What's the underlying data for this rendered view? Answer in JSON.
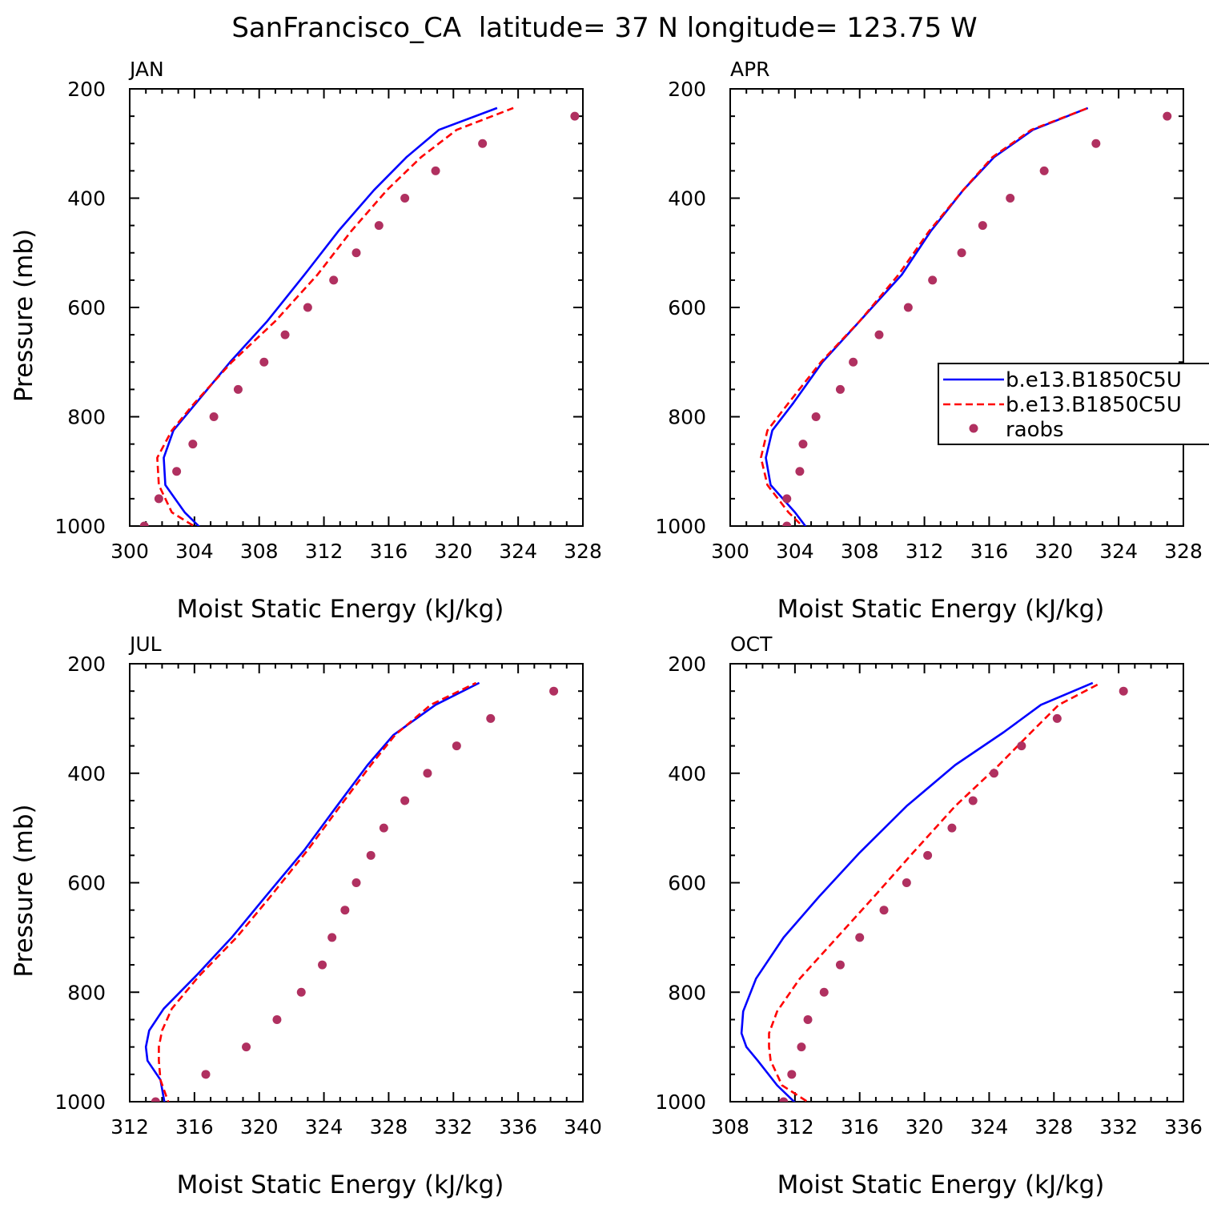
{
  "figure_title": "SanFrancisco_CA  latitude= 37 N longitude= 123.75 W",
  "colors": {
    "series_1": "#0000ff",
    "series_2": "#ff0000",
    "raobs": "#b03060",
    "axes": "#000000"
  },
  "legend": {
    "panel": "APR",
    "entries": [
      "b.e13.B1850C5U",
      "b.e13.B1850C5U",
      "raobs"
    ]
  },
  "chart_data": [
    {
      "type": "line",
      "panel_label": "JAN",
      "xlabel": "Moist Static Energy (kJ/kg)",
      "ylabel": "Pressure (mb)",
      "xlim": [
        300,
        328
      ],
      "ylim": [
        1000,
        200
      ],
      "y_axis_inverted": true,
      "xticks": [
        "300",
        "304",
        "308",
        "312",
        "316",
        "320",
        "324",
        "328"
      ],
      "yticks": [
        "200",
        "400",
        "600",
        "800",
        "1000"
      ],
      "series": [
        {
          "name": "b.e13.B1850C5U",
          "style": "solid",
          "x": [
            304.6,
            303.4,
            302.2,
            302.1,
            302.7,
            304.1,
            306.2,
            308.5,
            310.8,
            312.9,
            315.1,
            317.1,
            319.1,
            322.7
          ],
          "y": [
            1010,
            975,
            925,
            875,
            825,
            775,
            700,
            625,
            540,
            460,
            385,
            325,
            275,
            235
          ]
        },
        {
          "name": "b.e13.B1850C5U",
          "style": "dashed",
          "x": [
            304.5,
            302.6,
            301.8,
            301.7,
            302.6,
            304.0,
            306.3,
            309.0,
            311.6,
            313.7,
            315.9,
            318.0,
            320.2,
            323.7
          ],
          "y": [
            1010,
            975,
            925,
            875,
            825,
            775,
            700,
            625,
            540,
            460,
            385,
            325,
            275,
            235
          ]
        },
        {
          "name": "raobs",
          "style": "markers",
          "x": [
            300.9,
            301.8,
            302.9,
            303.9,
            305.2,
            306.7,
            308.3,
            309.6,
            311.0,
            312.6,
            314.0,
            315.4,
            317.0,
            318.9,
            321.8,
            327.5
          ],
          "y": [
            1000,
            950,
            900,
            850,
            800,
            750,
            700,
            650,
            600,
            550,
            500,
            450,
            400,
            350,
            300,
            250
          ]
        }
      ]
    },
    {
      "type": "line",
      "panel_label": "APR",
      "xlabel": "Moist Static Energy (kJ/kg)",
      "ylabel": "",
      "xlim": [
        300,
        328
      ],
      "ylim": [
        1000,
        200
      ],
      "y_axis_inverted": true,
      "xticks": [
        "300",
        "304",
        "308",
        "312",
        "316",
        "320",
        "324",
        "328"
      ],
      "yticks": [
        "200",
        "400",
        "600",
        "800",
        "1000"
      ],
      "series": [
        {
          "name": "b.e13.B1850C5U",
          "style": "solid",
          "x": [
            304.9,
            304.0,
            302.5,
            302.2,
            302.6,
            303.9,
            305.7,
            308.0,
            310.6,
            312.4,
            314.4,
            316.3,
            318.7,
            322.1
          ],
          "y": [
            1010,
            975,
            925,
            875,
            825,
            775,
            700,
            625,
            540,
            460,
            385,
            325,
            275,
            235
          ]
        },
        {
          "name": "b.e13.B1850C5U",
          "style": "dashed",
          "x": [
            304.8,
            303.6,
            302.3,
            301.9,
            302.3,
            303.6,
            305.6,
            308.0,
            310.4,
            312.3,
            314.4,
            316.2,
            318.6,
            322.1
          ],
          "y": [
            1010,
            975,
            925,
            875,
            825,
            775,
            700,
            625,
            540,
            460,
            385,
            325,
            275,
            235
          ]
        },
        {
          "name": "raobs",
          "style": "markers",
          "x": [
            303.5,
            303.5,
            304.3,
            304.5,
            305.3,
            306.8,
            307.6,
            309.2,
            311.0,
            312.5,
            314.3,
            315.6,
            317.3,
            319.4,
            322.6,
            327.0
          ],
          "y": [
            1000,
            950,
            900,
            850,
            800,
            750,
            700,
            650,
            600,
            550,
            500,
            450,
            400,
            350,
            300,
            250
          ]
        }
      ]
    },
    {
      "type": "line",
      "panel_label": "JUL",
      "xlabel": "Moist Static Energy (kJ/kg)",
      "ylabel": "Pressure (mb)",
      "xlim": [
        312,
        340
      ],
      "ylim": [
        1000,
        200
      ],
      "y_axis_inverted": true,
      "xticks": [
        "312",
        "316",
        "320",
        "324",
        "328",
        "332",
        "336",
        "340"
      ],
      "yticks": [
        "200",
        "400",
        "600",
        "800",
        "1000"
      ],
      "series": [
        {
          "name": "b.e13.B1850C5U",
          "style": "solid",
          "x": [
            314.2,
            313.9,
            313.1,
            313.0,
            313.2,
            314.1,
            316.1,
            318.3,
            320.4,
            322.8,
            324.8,
            326.7,
            328.3,
            330.9,
            333.6
          ],
          "y": [
            1010,
            960,
            925,
            900,
            870,
            830,
            770,
            700,
            625,
            540,
            460,
            385,
            330,
            275,
            235
          ]
        },
        {
          "name": "b.e13.B1850C5U",
          "style": "dashed",
          "x": [
            314.5,
            313.9,
            313.8,
            313.8,
            314.0,
            314.6,
            316.3,
            318.6,
            320.7,
            323.0,
            325.0,
            326.9,
            328.4,
            330.6,
            333.4
          ],
          "y": [
            1010,
            960,
            925,
            900,
            870,
            830,
            770,
            700,
            625,
            540,
            460,
            385,
            330,
            275,
            235
          ]
        },
        {
          "name": "raobs",
          "style": "markers",
          "x": [
            313.6,
            316.7,
            319.2,
            321.1,
            322.6,
            323.9,
            324.5,
            325.3,
            326.0,
            326.9,
            327.7,
            329.0,
            330.4,
            332.2,
            334.3,
            338.2
          ],
          "y": [
            1000,
            950,
            900,
            850,
            800,
            750,
            700,
            650,
            600,
            550,
            500,
            450,
            400,
            350,
            300,
            250
          ]
        }
      ]
    },
    {
      "type": "line",
      "panel_label": "OCT",
      "xlabel": "Moist Static Energy (kJ/kg)",
      "ylabel": "",
      "xlim": [
        308,
        336
      ],
      "ylim": [
        1000,
        200
      ],
      "y_axis_inverted": true,
      "xticks": [
        "308",
        "312",
        "316",
        "320",
        "324",
        "328",
        "332",
        "336"
      ],
      "yticks": [
        "200",
        "400",
        "600",
        "800",
        "1000"
      ],
      "series": [
        {
          "name": "b.e13.B1850C5U",
          "style": "solid",
          "x": [
            312.3,
            310.9,
            309.7,
            309.0,
            308.7,
            308.8,
            309.6,
            311.3,
            313.5,
            316.0,
            318.9,
            321.9,
            324.9,
            327.2,
            330.4
          ],
          "y": [
            1010,
            970,
            925,
            900,
            875,
            835,
            775,
            700,
            625,
            545,
            460,
            385,
            325,
            275,
            235
          ]
        },
        {
          "name": "b.e13.B1850C5U",
          "style": "dashed",
          "x": [
            313.3,
            311.2,
            310.5,
            310.4,
            310.4,
            310.9,
            312.3,
            314.6,
            316.9,
            319.3,
            321.9,
            324.6,
            326.6,
            328.3,
            330.9
          ],
          "y": [
            1010,
            970,
            925,
            900,
            875,
            835,
            775,
            700,
            625,
            545,
            460,
            385,
            325,
            275,
            235
          ]
        },
        {
          "name": "raobs",
          "style": "markers",
          "x": [
            311.3,
            311.8,
            312.4,
            312.8,
            313.8,
            314.8,
            316.0,
            317.5,
            318.9,
            320.2,
            321.7,
            323.0,
            324.3,
            326.0,
            328.2,
            332.3
          ],
          "y": [
            1000,
            950,
            900,
            850,
            800,
            750,
            700,
            650,
            600,
            550,
            500,
            450,
            400,
            350,
            300,
            250
          ]
        }
      ]
    }
  ]
}
